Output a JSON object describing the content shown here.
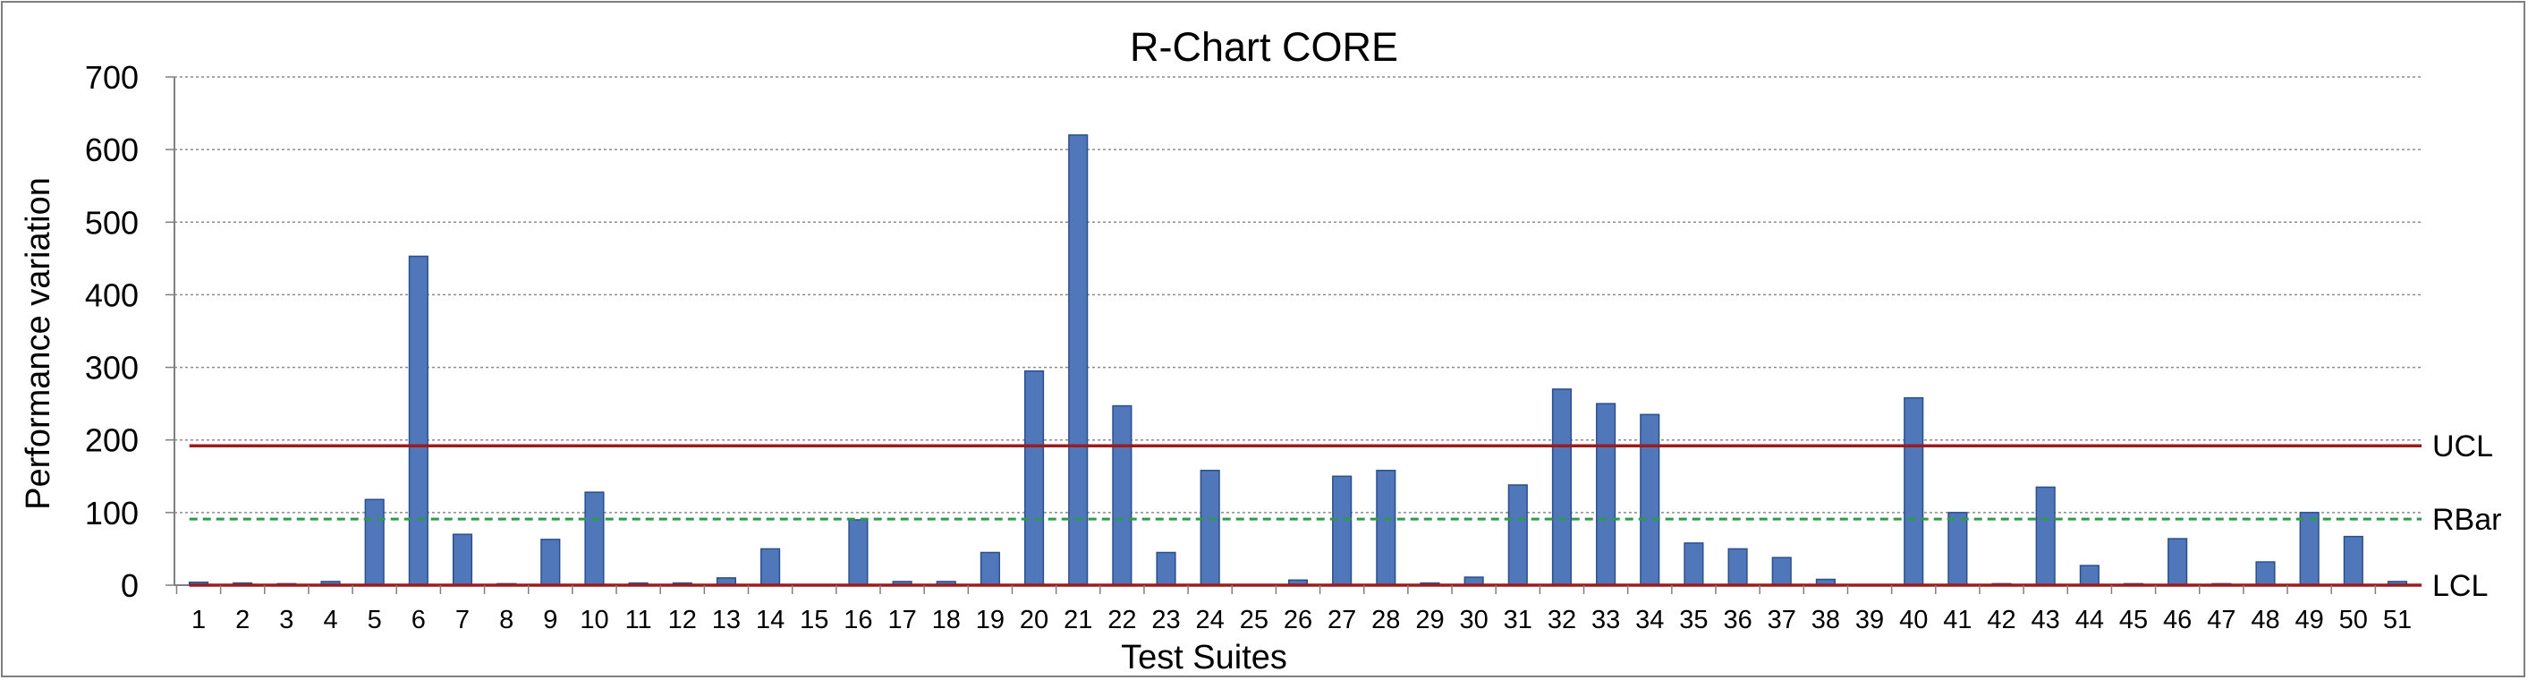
{
  "chart_data": {
    "type": "bar",
    "title": "R-Chart CORE",
    "xlabel": "Test Suites",
    "ylabel": "Performance variation",
    "ylim": [
      0,
      700
    ],
    "yticks": [
      "0",
      "100",
      "200",
      "300",
      "400",
      "500",
      "600",
      "700"
    ],
    "grid": true,
    "categories": [
      "1",
      "2",
      "3",
      "4",
      "5",
      "6",
      "7",
      "8",
      "9",
      "10",
      "11",
      "12",
      "13",
      "14",
      "15",
      "16",
      "17",
      "18",
      "19",
      "20",
      "21",
      "22",
      "23",
      "24",
      "25",
      "26",
      "27",
      "28",
      "29",
      "30",
      "31",
      "32",
      "33",
      "34",
      "35",
      "36",
      "37",
      "38",
      "39",
      "40",
      "41",
      "42",
      "43",
      "44",
      "45",
      "46",
      "47",
      "48",
      "49",
      "50",
      "51"
    ],
    "series": [
      {
        "name": "Performance variation",
        "values": [
          4,
          3,
          2,
          5,
          118,
          453,
          70,
          2,
          63,
          128,
          3,
          3,
          10,
          50,
          0,
          90,
          5,
          5,
          45,
          295,
          620,
          247,
          45,
          158,
          0,
          7,
          150,
          158,
          3,
          11,
          138,
          270,
          250,
          235,
          58,
          50,
          38,
          8,
          0,
          258,
          100,
          2,
          135,
          27,
          2,
          64,
          2,
          32,
          100,
          67,
          5
        ]
      }
    ],
    "reference_lines": [
      {
        "name": "UCL",
        "value": 192,
        "color": "#9b1c1c",
        "style": "solid"
      },
      {
        "name": "RBar",
        "value": 91,
        "color": "#2e9a4c",
        "style": "dashed"
      },
      {
        "name": "LCL",
        "value": 0,
        "color": "#9b1c1c",
        "style": "solid"
      }
    ],
    "colors": {
      "bar_fill": "#4f77b9",
      "bar_edge": "#2a4f8c",
      "grid": "#8c8c8c"
    }
  }
}
